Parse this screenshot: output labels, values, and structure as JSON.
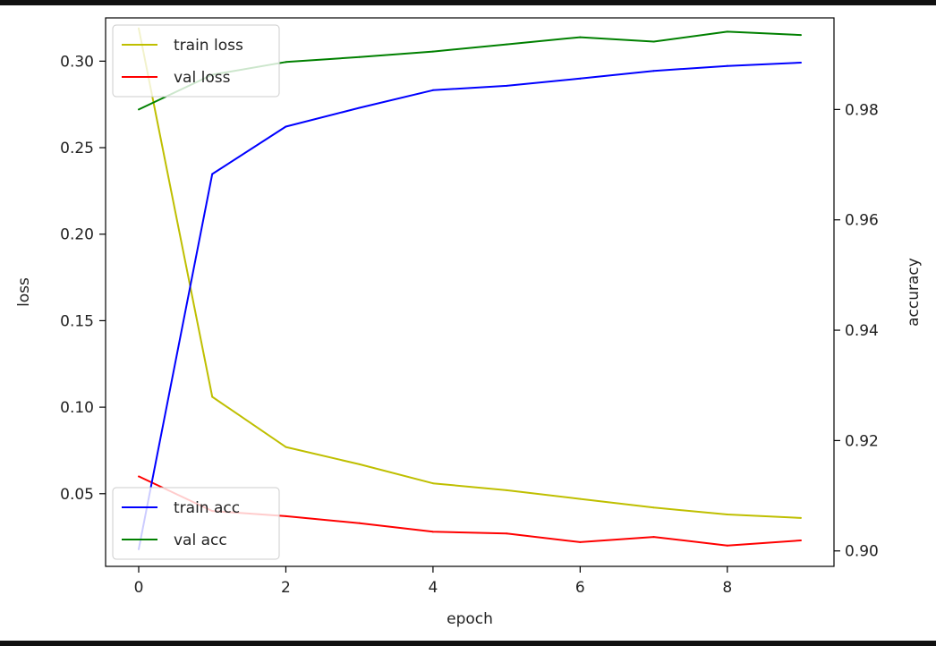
{
  "chart_data": {
    "type": "line",
    "xlabel": "epoch",
    "ylabel_left": "loss",
    "ylabel_right": "accuracy",
    "x": [
      0,
      1,
      2,
      3,
      4,
      5,
      6,
      7,
      8,
      9
    ],
    "xlim": [
      -0.45,
      9.45
    ],
    "xticks": [
      0,
      2,
      4,
      6,
      8
    ],
    "left_axis": {
      "ylim": [
        0.008,
        0.325
      ],
      "ticks": [
        0.05,
        0.1,
        0.15,
        0.2,
        0.25,
        0.3
      ],
      "tick_labels": [
        "0.05",
        "0.10",
        "0.15",
        "0.20",
        "0.25",
        "0.30"
      ]
    },
    "right_axis": {
      "ylim": [
        0.8972,
        0.9966
      ],
      "ticks": [
        0.9,
        0.92,
        0.94,
        0.96,
        0.98
      ],
      "tick_labels": [
        "0.90",
        "0.92",
        "0.94",
        "0.96",
        "0.98"
      ]
    },
    "series": [
      {
        "name": "train loss",
        "axis": "left",
        "color": "#bfbf00",
        "values": [
          0.319,
          0.106,
          0.077,
          0.067,
          0.056,
          0.052,
          0.047,
          0.042,
          0.038,
          0.036
        ]
      },
      {
        "name": "val loss",
        "axis": "left",
        "color": "#ff0000",
        "values": [
          0.06,
          0.04,
          0.037,
          0.033,
          0.028,
          0.027,
          0.022,
          0.025,
          0.02,
          0.023
        ]
      },
      {
        "name": "train acc",
        "axis": "right",
        "color": "#0000ff",
        "values": [
          0.9003,
          0.9683,
          0.9769,
          0.9803,
          0.9835,
          0.9843,
          0.9856,
          0.987,
          0.9879,
          0.9885
        ]
      },
      {
        "name": "val acc",
        "axis": "right",
        "color": "#008000",
        "values": [
          0.98,
          0.9863,
          0.9886,
          0.9895,
          0.9905,
          0.9918,
          0.9931,
          0.9923,
          0.9941,
          0.9935
        ]
      }
    ],
    "legends": [
      {
        "placement": "upper left",
        "entries": [
          "train loss",
          "val loss"
        ]
      },
      {
        "placement": "lower left",
        "entries": [
          "train acc",
          "val acc"
        ]
      }
    ],
    "grid": false
  }
}
